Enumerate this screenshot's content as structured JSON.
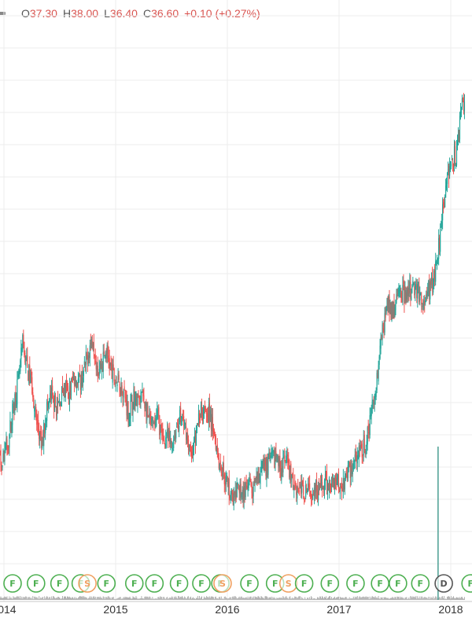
{
  "ohlc": {
    "open_label": "O",
    "open": "37.30",
    "high_label": "H",
    "high": "38.00",
    "low_label": "L",
    "low": "36.40",
    "close_label": "C",
    "close": "36.60",
    "change": "+0.10 (+0.27%)"
  },
  "colors": {
    "up": "#26a69a",
    "down": "#ef5350",
    "grid": "#ececec",
    "event_green": "#4caf50",
    "event_orange": "#f0a060",
    "event_gray": "#555555",
    "volume": "#b0b0b0"
  },
  "chart_data": {
    "type": "line",
    "title": "",
    "xlabel": "",
    "ylabel": "",
    "x_ticks": [
      "2014",
      "2015",
      "2016",
      "2017",
      "2018"
    ],
    "series": [
      {
        "values": [
          [
            2013.93,
            18.5
          ],
          [
            2014.0,
            18.0
          ],
          [
            2014.06,
            19.5
          ],
          [
            2014.11,
            22.5
          ],
          [
            2014.15,
            24.0
          ],
          [
            2014.19,
            27.0
          ],
          [
            2014.23,
            25.0
          ],
          [
            2014.27,
            24.0
          ],
          [
            2014.31,
            21.0
          ],
          [
            2014.36,
            19.0
          ],
          [
            2014.4,
            22.0
          ],
          [
            2014.45,
            23.0
          ],
          [
            2014.5,
            22.0
          ],
          [
            2014.55,
            23.5
          ],
          [
            2014.6,
            23.0
          ],
          [
            2014.65,
            24.5
          ],
          [
            2014.7,
            24.0
          ],
          [
            2014.74,
            25.0
          ],
          [
            2014.78,
            26.5
          ],
          [
            2014.82,
            27.5
          ],
          [
            2014.86,
            25.0
          ],
          [
            2014.9,
            25.5
          ],
          [
            2014.94,
            26.5
          ],
          [
            2014.99,
            24.5
          ],
          [
            2015.04,
            24.0
          ],
          [
            2015.09,
            23.5
          ],
          [
            2015.14,
            21.5
          ],
          [
            2015.18,
            23.0
          ],
          [
            2015.23,
            22.5
          ],
          [
            2015.27,
            23.0
          ],
          [
            2015.32,
            21.0
          ],
          [
            2015.36,
            20.5
          ],
          [
            2015.4,
            21.5
          ],
          [
            2015.44,
            19.5
          ],
          [
            2015.48,
            19.8
          ],
          [
            2015.52,
            19.0
          ],
          [
            2015.56,
            20.5
          ],
          [
            2015.6,
            21.5
          ],
          [
            2015.65,
            20.5
          ],
          [
            2015.7,
            18.0
          ],
          [
            2015.73,
            19.5
          ],
          [
            2015.77,
            21.5
          ],
          [
            2015.82,
            22.5
          ],
          [
            2015.86,
            21.5
          ],
          [
            2015.9,
            20.5
          ],
          [
            2015.95,
            18.0
          ],
          [
            2015.99,
            17.0
          ],
          [
            2016.04,
            15.8
          ],
          [
            2016.08,
            15.0
          ],
          [
            2016.13,
            16.0
          ],
          [
            2016.17,
            15.5
          ],
          [
            2016.22,
            16.0
          ],
          [
            2016.26,
            15.5
          ],
          [
            2016.3,
            17.0
          ],
          [
            2016.35,
            17.5
          ],
          [
            2016.4,
            18.0
          ],
          [
            2016.45,
            18.3
          ],
          [
            2016.5,
            17.5
          ],
          [
            2016.55,
            18.0
          ],
          [
            2016.6,
            16.5
          ],
          [
            2016.65,
            16.0
          ],
          [
            2016.7,
            15.8
          ],
          [
            2016.75,
            15.6
          ],
          [
            2016.8,
            16.2
          ],
          [
            2016.85,
            15.8
          ],
          [
            2016.9,
            16.3
          ],
          [
            2016.95,
            16.5
          ],
          [
            2017.0,
            16.8
          ],
          [
            2017.04,
            16.0
          ],
          [
            2017.08,
            16.8
          ],
          [
            2017.13,
            17.5
          ],
          [
            2017.17,
            18.0
          ],
          [
            2017.21,
            18.5
          ],
          [
            2017.24,
            19.0
          ],
          [
            2017.27,
            19.5
          ],
          [
            2017.3,
            21.0
          ],
          [
            2017.33,
            22.5
          ],
          [
            2017.36,
            24.5
          ],
          [
            2017.39,
            26.5
          ],
          [
            2017.42,
            28.5
          ],
          [
            2017.46,
            30.0
          ],
          [
            2017.5,
            29.5
          ],
          [
            2017.54,
            30.5
          ],
          [
            2017.58,
            31.0
          ],
          [
            2017.63,
            30.5
          ],
          [
            2017.68,
            31.5
          ],
          [
            2017.73,
            31.0
          ],
          [
            2017.77,
            30.0
          ],
          [
            2017.8,
            30.5
          ],
          [
            2017.84,
            31.5
          ],
          [
            2017.88,
            32.5
          ],
          [
            2017.92,
            35.0
          ],
          [
            2017.94,
            37.0
          ],
          [
            2017.96,
            38.0
          ],
          [
            2017.99,
            39.5
          ],
          [
            2018.03,
            41.0
          ],
          [
            2018.07,
            41.5
          ],
          [
            2018.1,
            43.5
          ],
          [
            2018.13,
            45.5
          ]
        ]
      }
    ],
    "ylim": [
      13,
      49
    ],
    "xlim": [
      2013.93,
      2018.15
    ],
    "grid": true,
    "events": [
      {
        "label": "F",
        "x": 2014.0,
        "kind": "green"
      },
      {
        "label": "F",
        "x": 2014.21,
        "kind": "green"
      },
      {
        "label": "F",
        "x": 2014.42,
        "kind": "green"
      },
      {
        "label": "F",
        "x": 2014.61,
        "kind": "green"
      },
      {
        "label": "S",
        "x": 2014.67,
        "kind": "orange"
      },
      {
        "label": "F",
        "x": 2014.84,
        "kind": "green"
      },
      {
        "label": "F",
        "x": 2015.09,
        "kind": "green"
      },
      {
        "label": "F",
        "x": 2015.27,
        "kind": "green"
      },
      {
        "label": "F",
        "x": 2015.49,
        "kind": "green"
      },
      {
        "label": "F",
        "x": 2015.69,
        "kind": "green"
      },
      {
        "label": "F",
        "x": 2015.86,
        "kind": "green"
      },
      {
        "label": "S",
        "x": 2015.88,
        "kind": "orange"
      },
      {
        "label": "F",
        "x": 2016.12,
        "kind": "green"
      },
      {
        "label": "F",
        "x": 2016.35,
        "kind": "green"
      },
      {
        "label": "S",
        "x": 2016.47,
        "kind": "orange"
      },
      {
        "label": "F",
        "x": 2016.61,
        "kind": "green"
      },
      {
        "label": "F",
        "x": 2016.84,
        "kind": "green"
      },
      {
        "label": "F",
        "x": 2017.07,
        "kind": "green"
      },
      {
        "label": "F",
        "x": 2017.29,
        "kind": "green"
      },
      {
        "label": "F",
        "x": 2017.45,
        "kind": "green"
      },
      {
        "label": "F",
        "x": 2017.65,
        "kind": "green"
      },
      {
        "label": "D",
        "x": 2017.86,
        "kind": "gray"
      },
      {
        "label": "F",
        "x": 2018.1,
        "kind": "green"
      }
    ]
  }
}
